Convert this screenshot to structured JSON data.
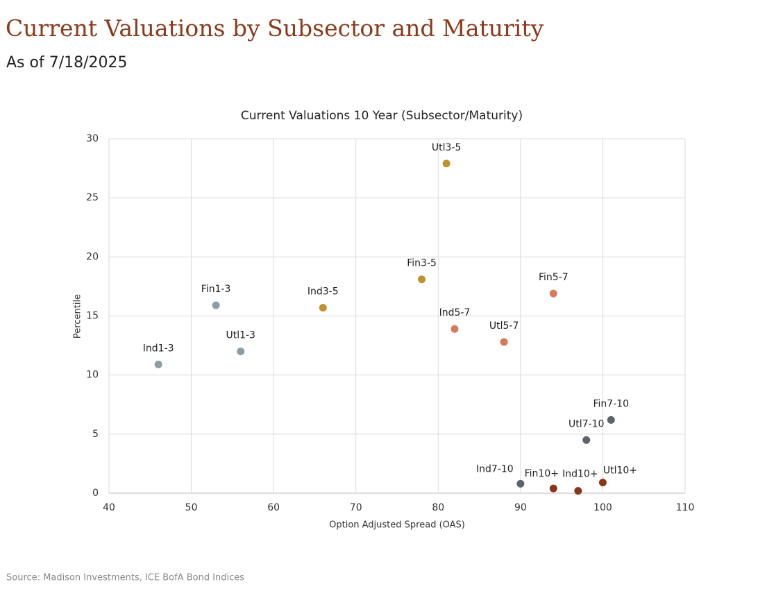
{
  "title": "Current Valuations by Subsector and Maturity",
  "subtitle": "As of 7/18/2025",
  "source": "Source: Madison Investments, ICE BofA Bond Indices",
  "chart_data": {
    "type": "scatter",
    "title": "Current Valuations 10 Year (Subsector/Maturity)",
    "x_label": "Option Adjusted Spread (OAS)",
    "y_label": "Percentile",
    "xlim": [
      40,
      110
    ],
    "xticks": [
      40,
      50,
      60,
      70,
      80,
      90,
      100,
      110
    ],
    "ylim": [
      0,
      30
    ],
    "yticks": [
      0,
      5,
      10,
      15,
      20,
      25,
      30
    ],
    "grid": true,
    "series": [
      {
        "color": "#8c9da5",
        "labels": [
          "Ind1-3",
          "Fin1-3",
          "Utl1-3"
        ],
        "x": [
          46,
          53,
          56
        ],
        "values": [
          10.9,
          15.9,
          12.0
        ]
      },
      {
        "color": "#c0922c",
        "labels": [
          "Ind3-5",
          "Fin3-5",
          "Utl3-5"
        ],
        "x": [
          66,
          78,
          81
        ],
        "values": [
          15.7,
          18.1,
          27.9
        ]
      },
      {
        "color": "#d67a5a",
        "labels": [
          "Ind5-7",
          "Utl5-7",
          "Fin5-7"
        ],
        "x": [
          82,
          88,
          94
        ],
        "values": [
          13.9,
          12.8,
          16.9
        ]
      },
      {
        "color": "#5b6569",
        "labels": [
          "Ind7-10",
          "Utl7-10",
          "Fin7-10"
        ],
        "x": [
          90,
          98,
          101
        ],
        "values": [
          0.8,
          4.5,
          6.2
        ]
      },
      {
        "color": "#8b3418",
        "labels": [
          "Fin10+",
          "Ind10+",
          "Utl10+"
        ],
        "x": [
          94,
          97,
          100
        ],
        "values": [
          0.4,
          0.2,
          0.9
        ]
      }
    ]
  }
}
